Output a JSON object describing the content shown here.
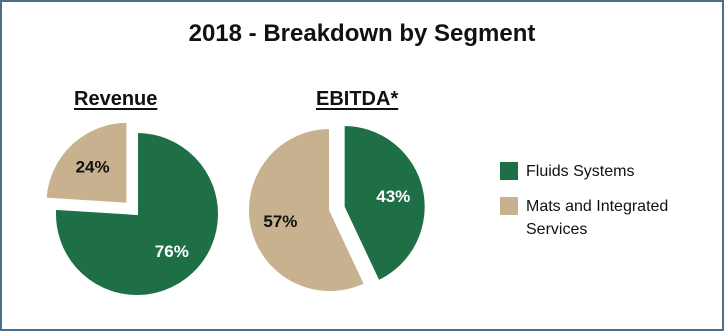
{
  "chart_data": {
    "type": "pie",
    "title": "2018 - Breakdown by Segment",
    "colors": {
      "fluids": "#1e6e46",
      "mats": "#c8b18e"
    },
    "legend": [
      {
        "label": "Fluids Systems",
        "color": "#1e6e46"
      },
      {
        "label": "Mats and Integrated Services",
        "color": "#c8b18e"
      }
    ],
    "legend_position": "right",
    "pies": [
      {
        "title": "Revenue",
        "slices": [
          {
            "name": "Fluids Systems",
            "value": 76,
            "label": "76%",
            "exploded": false
          },
          {
            "name": "Mats and Integrated Services",
            "value": 24,
            "label": "24%",
            "exploded": true
          }
        ]
      },
      {
        "title": "EBITDA*",
        "slices": [
          {
            "name": "Fluids Systems",
            "value": 43,
            "label": "43%",
            "exploded": true
          },
          {
            "name": "Mats and Integrated Services",
            "value": 57,
            "label": "57%",
            "exploded": false
          }
        ]
      }
    ]
  }
}
